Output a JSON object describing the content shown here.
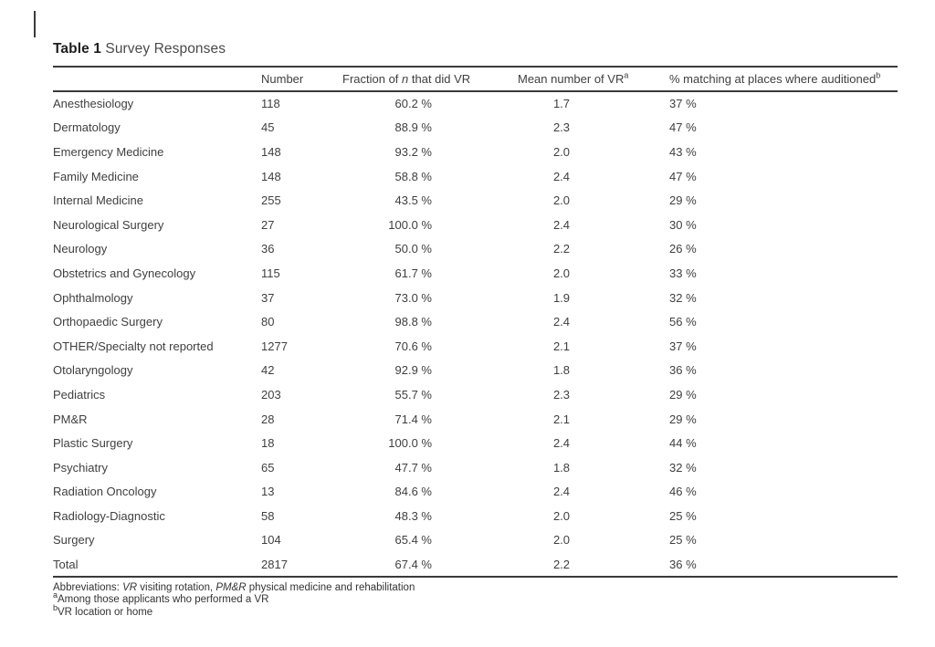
{
  "page": {
    "title_bold": "Table 1",
    "title_rest": " Survey Responses"
  },
  "table": {
    "headers": {
      "specialty": "",
      "number": "Number",
      "fraction_pre": "Fraction of ",
      "fraction_italic": "n",
      "fraction_post": " that did VR",
      "mean_text": "Mean number of VR",
      "mean_sup": "a",
      "matching_text": "% matching at places where auditioned",
      "matching_sup": "b"
    },
    "rows": [
      {
        "specialty": "Anesthesiology",
        "number": "118",
        "fraction": "60.2 %",
        "mean": "1.7",
        "matching": "37 %"
      },
      {
        "specialty": "Dermatology",
        "number": "45",
        "fraction": "88.9 %",
        "mean": "2.3",
        "matching": "47 %"
      },
      {
        "specialty": "Emergency Medicine",
        "number": "148",
        "fraction": "93.2 %",
        "mean": "2.0",
        "matching": "43 %"
      },
      {
        "specialty": "Family Medicine",
        "number": "148",
        "fraction": "58.8 %",
        "mean": "2.4",
        "matching": "47 %"
      },
      {
        "specialty": "Internal Medicine",
        "number": "255",
        "fraction": "43.5 %",
        "mean": "2.0",
        "matching": "29 %"
      },
      {
        "specialty": "Neurological Surgery",
        "number": "27",
        "fraction": "100.0 %",
        "mean": "2.4",
        "matching": "30 %"
      },
      {
        "specialty": "Neurology",
        "number": "36",
        "fraction": "50.0 %",
        "mean": "2.2",
        "matching": "26 %"
      },
      {
        "specialty": "Obstetrics and Gynecology",
        "number": "115",
        "fraction": "61.7 %",
        "mean": "2.0",
        "matching": "33 %"
      },
      {
        "specialty": "Ophthalmology",
        "number": "37",
        "fraction": "73.0 %",
        "mean": "1.9",
        "matching": "32 %"
      },
      {
        "specialty": "Orthopaedic Surgery",
        "number": "80",
        "fraction": "98.8 %",
        "mean": "2.4",
        "matching": "56 %"
      },
      {
        "specialty": "OTHER/Specialty not reported",
        "number": "1277",
        "fraction": "70.6 %",
        "mean": "2.1",
        "matching": "37 %"
      },
      {
        "specialty": "Otolaryngology",
        "number": "42",
        "fraction": "92.9 %",
        "mean": "1.8",
        "matching": "36 %"
      },
      {
        "specialty": "Pediatrics",
        "number": "203",
        "fraction": "55.7 %",
        "mean": "2.3",
        "matching": "29 %"
      },
      {
        "specialty": "PM&R",
        "number": "28",
        "fraction": "71.4 %",
        "mean": "2.1",
        "matching": "29 %"
      },
      {
        "specialty": "Plastic Surgery",
        "number": "18",
        "fraction": "100.0 %",
        "mean": "2.4",
        "matching": "44 %"
      },
      {
        "specialty": "Psychiatry",
        "number": "65",
        "fraction": "47.7 %",
        "mean": "1.8",
        "matching": "32 %"
      },
      {
        "specialty": "Radiation Oncology",
        "number": "13",
        "fraction": "84.6 %",
        "mean": "2.4",
        "matching": "46 %"
      },
      {
        "specialty": "Radiology-Diagnostic",
        "number": "58",
        "fraction": "48.3 %",
        "mean": "2.0",
        "matching": "25 %"
      },
      {
        "specialty": "Surgery",
        "number": "104",
        "fraction": "65.4 %",
        "mean": "2.0",
        "matching": "25 %"
      },
      {
        "specialty": "Total",
        "number": "2817",
        "fraction": "67.4 %",
        "mean": "2.2",
        "matching": "36 %"
      }
    ]
  },
  "footnotes": {
    "abbr_label": "Abbreviations: ",
    "abbr_term1": "VR",
    "abbr_def1": " visiting rotation, ",
    "abbr_term2": "PM&R",
    "abbr_def2": " physical medicine and rehabilitation",
    "note_a_sup": "a",
    "note_a_text": "Among those applicants who performed a VR",
    "note_b_sup": "b",
    "note_b_text": "VR location or home"
  },
  "colors": {
    "background": "#ffffff",
    "text": "#3f3f3f",
    "title": "#1e1e1e",
    "rule": "#3a3a3a"
  }
}
